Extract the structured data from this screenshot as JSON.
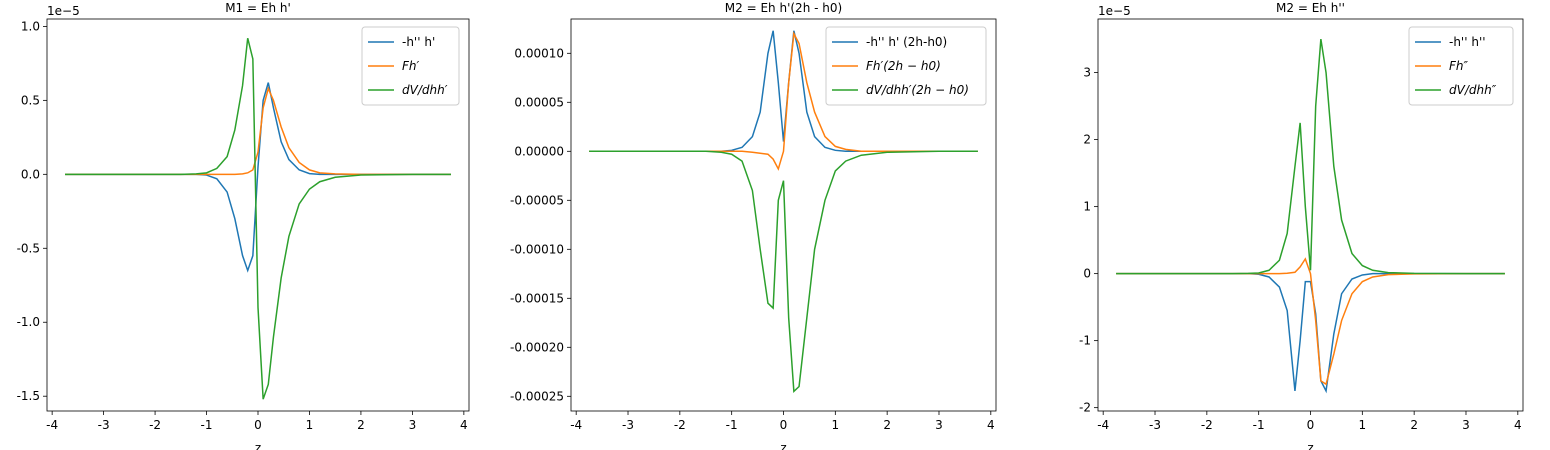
{
  "chart_data": [
    {
      "type": "line",
      "title": "M1 = Eh h'",
      "x_label": "z",
      "offset_label": "1e−5",
      "x": [
        -3.75,
        -3,
        -2,
        -1.5,
        -1.2,
        -1,
        -0.8,
        -0.6,
        -0.45,
        -0.3,
        -0.2,
        -0.1,
        0,
        0.1,
        0.2,
        0.3,
        0.45,
        0.6,
        0.8,
        1,
        1.2,
        1.5,
        2,
        3,
        3.75
      ],
      "xlim": [
        -4.1,
        4.1
      ],
      "xticks": [
        -4,
        -3,
        -2,
        -1,
        0,
        1,
        2,
        3,
        4
      ],
      "ylim": [
        -1.6,
        1.05
      ],
      "yticks": [
        -1.5,
        {
          "value": -1,
          "label": "-1.0"
        },
        -0.5,
        {
          "value": 0,
          "label": "0.0"
        },
        0.5,
        {
          "value": 1,
          "label": "1.0"
        }
      ],
      "legend": "upper right",
      "series": [
        {
          "name": "-h'' h'",
          "color": "#1f77b4",
          "values": [
            0,
            0,
            0,
            0,
            0,
            -0.005,
            -0.03,
            -0.12,
            -0.3,
            -0.55,
            -0.65,
            -0.55,
            0.05,
            0.5,
            0.62,
            0.45,
            0.22,
            0.1,
            0.03,
            0.005,
            0,
            0,
            0,
            0,
            0
          ]
        },
        {
          "name": "Fh′",
          "color": "#ff7f0e",
          "values": [
            0,
            0,
            0,
            0,
            0,
            0,
            0,
            0,
            0,
            0.003,
            0.01,
            0.03,
            0.15,
            0.45,
            0.58,
            0.5,
            0.32,
            0.18,
            0.08,
            0.03,
            0.01,
            0.003,
            0,
            0,
            0
          ]
        },
        {
          "name": "dV/dhh′",
          "color": "#2ca02c",
          "values": [
            0,
            0,
            0,
            0,
            0.003,
            0.01,
            0.04,
            0.12,
            0.3,
            0.6,
            0.92,
            0.78,
            -0.9,
            -1.52,
            -1.42,
            -1.1,
            -0.7,
            -0.42,
            -0.2,
            -0.1,
            -0.05,
            -0.02,
            -0.005,
            0,
            0
          ]
        }
      ]
    },
    {
      "type": "line",
      "title": "M2 = Eh h'(2h - h0)",
      "x_label": "z",
      "x": [
        -3.75,
        -3,
        -2,
        -1.5,
        -1.2,
        -1,
        -0.8,
        -0.6,
        -0.45,
        -0.3,
        -0.2,
        -0.1,
        0,
        0.1,
        0.2,
        0.3,
        0.45,
        0.6,
        0.8,
        1,
        1.2,
        1.5,
        2,
        3,
        3.75
      ],
      "xlim": [
        -4.1,
        4.1
      ],
      "xticks": [
        -4,
        -3,
        -2,
        -1,
        0,
        1,
        2,
        3,
        4
      ],
      "ylim": [
        -0.000265,
        0.000135
      ],
      "yticks": [
        {
          "value": -0.00025,
          "label": "-0.00025"
        },
        {
          "value": -0.0002,
          "label": "-0.00020"
        },
        {
          "value": -0.00015,
          "label": "-0.00015"
        },
        {
          "value": -0.0001,
          "label": "-0.00010"
        },
        {
          "value": -5e-05,
          "label": "-0.00005"
        },
        {
          "value": 0,
          "label": "0.00000"
        },
        {
          "value": 5e-05,
          "label": "0.00005"
        },
        {
          "value": 0.0001,
          "label": "0.00010"
        }
      ],
      "legend": "upper right",
      "series": [
        {
          "name": "-h'' h' (2h-h0)",
          "color": "#1f77b4",
          "values": [
            0,
            0,
            0,
            0,
            0,
            1e-06,
            4e-06,
            1.5e-05,
            4e-05,
            0.0001,
            0.000123,
            7e-05,
            1e-05,
            7e-05,
            0.000123,
            0.0001,
            4e-05,
            1.5e-05,
            4e-06,
            1e-06,
            0,
            0,
            0,
            0,
            0
          ]
        },
        {
          "name": "Fh′(2h − h0)",
          "color": "#ff7f0e",
          "values": [
            0,
            0,
            0,
            0,
            0,
            0,
            0,
            -1e-06,
            -2e-06,
            -3e-06,
            -8e-06,
            -1.8e-05,
            0,
            7e-05,
            0.00012,
            0.00011,
            7e-05,
            4e-05,
            1.5e-05,
            5e-06,
            2e-06,
            0,
            0,
            0,
            0
          ]
        },
        {
          "name": "dV/dhh′(2h − h0)",
          "color": "#2ca02c",
          "values": [
            0,
            0,
            0,
            0,
            -1e-06,
            -3e-06,
            -1e-05,
            -4e-05,
            -0.0001,
            -0.000155,
            -0.00016,
            -5e-05,
            -3e-05,
            -0.00017,
            -0.000245,
            -0.00024,
            -0.00017,
            -0.0001,
            -5e-05,
            -2e-05,
            -1e-05,
            -4e-06,
            -1e-06,
            0,
            0
          ]
        }
      ]
    },
    {
      "type": "line",
      "title": "M2 = Eh h''",
      "x_label": "z",
      "offset_label": "1e−5",
      "x": [
        -3.75,
        -3,
        -2,
        -1.5,
        -1.2,
        -1,
        -0.8,
        -0.6,
        -0.45,
        -0.3,
        -0.2,
        -0.1,
        0,
        0.1,
        0.2,
        0.3,
        0.45,
        0.6,
        0.8,
        1,
        1.2,
        1.5,
        2,
        3,
        3.75
      ],
      "xlim": [
        -4.1,
        4.1
      ],
      "xticks": [
        -4,
        -3,
        -2,
        -1,
        0,
        1,
        2,
        3,
        4
      ],
      "ylim": [
        -2.05,
        3.8
      ],
      "yticks": [
        -2,
        -1,
        0,
        1,
        2,
        3
      ],
      "legend": "upper right",
      "series": [
        {
          "name": "-h'' h''",
          "color": "#1f77b4",
          "values": [
            0,
            0,
            0,
            0,
            0,
            -0.01,
            -0.05,
            -0.2,
            -0.55,
            -1.75,
            -1.0,
            -0.12,
            -0.12,
            -0.6,
            -1.6,
            -1.75,
            -0.9,
            -0.3,
            -0.08,
            -0.02,
            0,
            0,
            0,
            0,
            0
          ]
        },
        {
          "name": "Fh″",
          "color": "#ff7f0e",
          "values": [
            0,
            0,
            0,
            0,
            0,
            0,
            0,
            0,
            0.005,
            0.02,
            0.1,
            0.22,
            0,
            -0.7,
            -1.6,
            -1.65,
            -1.2,
            -0.7,
            -0.3,
            -0.12,
            -0.05,
            -0.015,
            -0.003,
            0,
            0
          ]
        },
        {
          "name": "dV/dhh″",
          "color": "#2ca02c",
          "values": [
            0,
            0,
            0,
            0,
            0.003,
            0.01,
            0.05,
            0.2,
            0.6,
            1.6,
            2.25,
            1.0,
            0.05,
            2.5,
            3.5,
            3.0,
            1.6,
            0.8,
            0.3,
            0.12,
            0.05,
            0.015,
            0.003,
            0,
            0
          ]
        }
      ]
    }
  ]
}
